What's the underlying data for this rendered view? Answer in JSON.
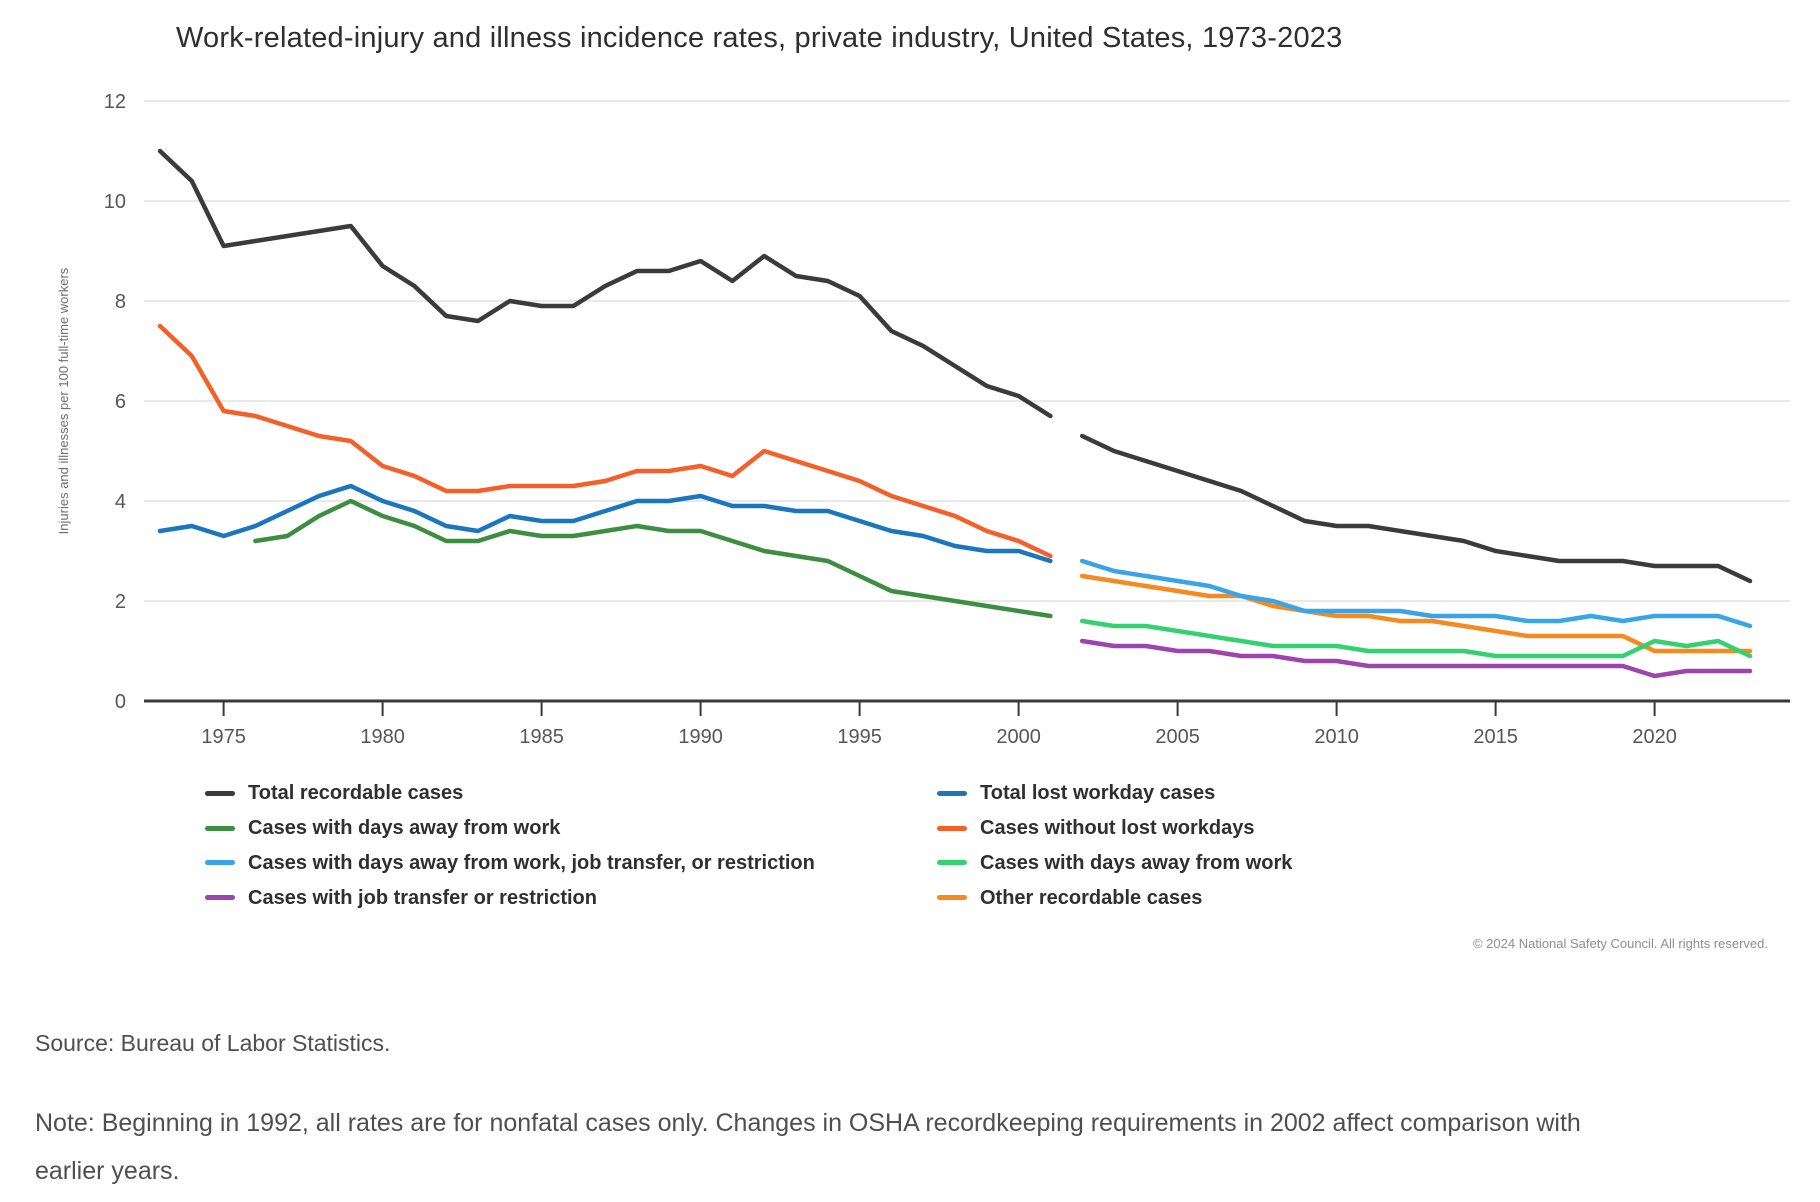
{
  "footer": {
    "copyright": "© 2024 National Safety Council. All rights reserved.",
    "source": "Source: Bureau of Labor Statistics.",
    "note": "Note: Beginning in 1992, all rates are for nonfatal cases only. Changes in OSHA recordkeeping requirements in 2002 affect comparison with earlier years."
  },
  "chart_data": {
    "type": "line",
    "title": "Work-related-injury and illness incidence rates, private industry, United States, 1973-2023",
    "xlabel": "",
    "ylabel": "Injuries and illnesses per 100 full-time workers",
    "xlim": [
      1973,
      2023
    ],
    "ylim": [
      0,
      12
    ],
    "grid": "horizontal",
    "legend_position": "bottom-two-columns",
    "x_ticks": [
      1975,
      1980,
      1985,
      1990,
      1995,
      2000,
      2005,
      2010,
      2015,
      2020
    ],
    "y_ticks": [
      0,
      2,
      4,
      6,
      8,
      10,
      12
    ],
    "series": [
      {
        "name": "Total recordable cases",
        "color": "#3b3b3b",
        "legend_column": 0,
        "legend_row": 0,
        "segments": [
          {
            "start_year": 1973,
            "values": [
              11.0,
              10.4,
              9.1,
              9.2,
              9.3,
              9.4,
              9.5,
              8.7,
              8.3,
              7.7,
              7.6,
              8.0,
              7.9,
              7.9,
              8.3,
              8.6,
              8.6,
              8.8,
              8.4,
              8.9,
              8.5,
              8.4,
              8.1,
              7.4,
              7.1,
              6.7,
              6.3,
              6.1,
              5.7
            ]
          },
          {
            "start_year": 2002,
            "values": [
              5.3,
              5.0,
              4.8,
              4.6,
              4.4,
              4.2,
              3.9,
              3.6,
              3.5,
              3.5,
              3.4,
              3.3,
              3.2,
              3.0,
              2.9,
              2.8,
              2.8,
              2.8,
              2.7,
              2.7,
              2.7,
              2.4
            ]
          }
        ]
      },
      {
        "name": "Total lost workday cases",
        "color": "#1b76be",
        "legend_column": 1,
        "legend_row": 0,
        "segments": [
          {
            "start_year": 1973,
            "values": [
              3.4,
              3.5,
              3.3,
              3.5,
              3.8,
              4.1,
              4.3,
              4.0,
              3.8,
              3.5,
              3.4,
              3.7,
              3.6,
              3.6,
              3.8,
              4.0,
              4.0,
              4.1,
              3.9,
              3.9,
              3.8,
              3.8,
              3.6,
              3.4,
              3.3,
              3.1,
              3.0,
              3.0,
              2.8
            ]
          }
        ]
      },
      {
        "name": "Cases with days away from work",
        "color": "#3e8e42",
        "legend_column": 0,
        "legend_row": 1,
        "segments": [
          {
            "start_year": 1976,
            "values": [
              3.2,
              3.3,
              3.7,
              4.0,
              3.7,
              3.5,
              3.2,
              3.2,
              3.4,
              3.3,
              3.3,
              3.4,
              3.5,
              3.4,
              3.4,
              3.2,
              3.0,
              2.9,
              2.8,
              2.5,
              2.2,
              2.1,
              2.0,
              1.9,
              1.8,
              1.7
            ]
          }
        ]
      },
      {
        "name": "Cases without lost workdays",
        "color": "#f4602a",
        "legend_column": 1,
        "legend_row": 1,
        "segments": [
          {
            "start_year": 1973,
            "values": [
              7.5,
              6.9,
              5.8,
              5.7,
              5.5,
              5.3,
              5.2,
              4.7,
              4.5,
              4.2,
              4.2,
              4.3,
              4.3,
              4.3,
              4.4,
              4.6,
              4.6,
              4.7,
              4.5,
              5.0,
              4.8,
              4.6,
              4.4,
              4.1,
              3.9,
              3.7,
              3.4,
              3.2,
              2.9
            ]
          }
        ]
      },
      {
        "name": "Other recordable cases",
        "color": "#f68a20",
        "legend_column": 1,
        "legend_row": 3,
        "segments": [
          {
            "start_year": 2002,
            "values": [
              2.5,
              2.4,
              2.3,
              2.2,
              2.1,
              2.1,
              1.9,
              1.8,
              1.7,
              1.7,
              1.6,
              1.6,
              1.5,
              1.4,
              1.3,
              1.3,
              1.3,
              1.3,
              1.0,
              1.0,
              1.0,
              1.0
            ]
          }
        ]
      },
      {
        "name": "Cases with job transfer or restriction",
        "color": "#9d44ae",
        "legend_column": 0,
        "legend_row": 3,
        "segments": [
          {
            "start_year": 2002,
            "values": [
              1.2,
              1.1,
              1.1,
              1.0,
              1.0,
              0.9,
              0.9,
              0.8,
              0.8,
              0.7,
              0.7,
              0.7,
              0.7,
              0.7,
              0.7,
              0.7,
              0.7,
              0.7,
              0.5,
              0.6,
              0.6,
              0.6
            ]
          }
        ]
      },
      {
        "name": "Cases with days away from work",
        "color": "#34d171",
        "legend_column": 1,
        "legend_row": 2,
        "segments": [
          {
            "start_year": 2002,
            "values": [
              1.6,
              1.5,
              1.5,
              1.4,
              1.3,
              1.2,
              1.1,
              1.1,
              1.1,
              1.0,
              1.0,
              1.0,
              1.0,
              0.9,
              0.9,
              0.9,
              0.9,
              0.9,
              1.2,
              1.1,
              1.2,
              0.9
            ]
          }
        ]
      },
      {
        "name": "Cases with days away from work, job transfer, or restriction",
        "color": "#3aa5e6",
        "legend_column": 0,
        "legend_row": 2,
        "segments": [
          {
            "start_year": 2002,
            "values": [
              2.8,
              2.6,
              2.5,
              2.4,
              2.3,
              2.1,
              2.0,
              1.8,
              1.8,
              1.8,
              1.8,
              1.7,
              1.7,
              1.7,
              1.6,
              1.6,
              1.7,
              1.6,
              1.7,
              1.7,
              1.7,
              1.5
            ]
          }
        ]
      }
    ]
  }
}
